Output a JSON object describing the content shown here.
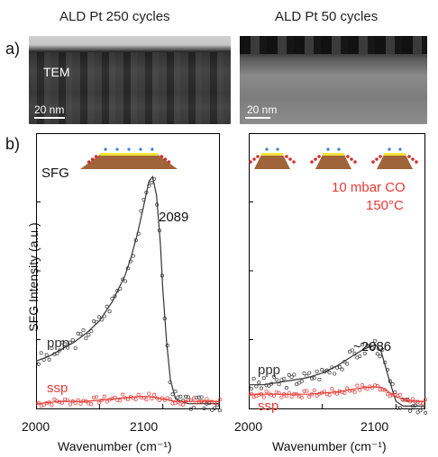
{
  "panel_a": {
    "label": "a)",
    "left_title": "ALD Pt 250 cycles",
    "right_title": "ALD Pt 50 cycles",
    "tem_label": "TEM",
    "scale_left": "20 nm",
    "scale_right": "20 nm"
  },
  "panel_b": {
    "label": "b)",
    "ylabel": "SFG Intensity (a.u.)",
    "sfg_label": "SFG",
    "condition_line1": "10 mbar CO",
    "condition_line2": "150°C",
    "colors": {
      "ppp": "#333333",
      "ssp": "#e53935",
      "condition": "#e53935",
      "support": "#a0643a",
      "film": "#f2e23a"
    }
  },
  "chart_data": [
    {
      "type": "line",
      "xlabel": "Wavenumber (cm⁻¹)",
      "xlim": [
        2000,
        2145
      ],
      "ylim": [
        0,
        1.05
      ],
      "x_ticks": [
        "2000",
        "2100"
      ],
      "annotation": "2089",
      "series": [
        {
          "name": "ppp",
          "x": [
            2000,
            2010,
            2020,
            2030,
            2040,
            2050,
            2060,
            2070,
            2075,
            2080,
            2085,
            2089,
            2092,
            2095,
            2098,
            2100,
            2103,
            2106,
            2110,
            2120,
            2130,
            2140,
            2145
          ],
          "values": [
            0.2,
            0.22,
            0.25,
            0.28,
            0.32,
            0.37,
            0.45,
            0.56,
            0.64,
            0.74,
            0.86,
            0.96,
            0.98,
            0.9,
            0.7,
            0.5,
            0.28,
            0.12,
            0.04,
            0.02,
            0.02,
            0.02,
            0.02
          ]
        },
        {
          "name": "ssp",
          "x": [
            2000,
            2020,
            2040,
            2060,
            2080,
            2090,
            2100,
            2110,
            2130,
            2145
          ],
          "values": [
            0.02,
            0.03,
            0.03,
            0.04,
            0.05,
            0.05,
            0.04,
            0.03,
            0.03,
            0.03
          ]
        }
      ]
    },
    {
      "type": "line",
      "xlabel": "Wavenumber (cm⁻¹)",
      "xlim": [
        2000,
        2120
      ],
      "ylim": [
        0,
        1.05
      ],
      "x_ticks": [
        "2000",
        "2100"
      ],
      "annotation": "~2086",
      "series": [
        {
          "name": "ppp",
          "x": [
            2000,
            2010,
            2020,
            2030,
            2040,
            2050,
            2060,
            2070,
            2078,
            2086,
            2090,
            2095,
            2100,
            2105,
            2110,
            2120
          ],
          "values": [
            0.1,
            0.1,
            0.11,
            0.12,
            0.13,
            0.15,
            0.18,
            0.22,
            0.25,
            0.27,
            0.24,
            0.13,
            0.03,
            0.01,
            0.01,
            0.01
          ]
        },
        {
          "name": "ssp",
          "x": [
            2000,
            2020,
            2040,
            2060,
            2070,
            2080,
            2090,
            2100,
            2110,
            2120
          ],
          "values": [
            0.06,
            0.06,
            0.06,
            0.07,
            0.08,
            0.09,
            0.09,
            0.05,
            0.03,
            0.03
          ]
        }
      ]
    }
  ]
}
